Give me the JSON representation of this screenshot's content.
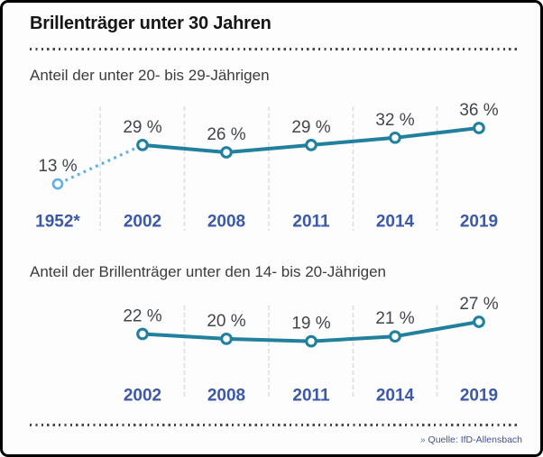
{
  "card": {
    "title": "Brillenträger unter 30 Jahren",
    "source_bullet": "»",
    "source": "Quelle: IfD-Allensbach"
  },
  "colors": {
    "line": "#20809d",
    "dotted_line": "#5fb0e4",
    "year_label": "#3c58a8",
    "value_label": "#42454e",
    "grid": "#dedede"
  },
  "chart_data": [
    {
      "type": "line",
      "title": "Anteil der unter 20- bis 29-Jährigen",
      "categories": [
        "1952*",
        "2002",
        "2008",
        "2011",
        "2014",
        "2019"
      ],
      "values": [
        13,
        29,
        26,
        29,
        32,
        36
      ],
      "unit": "%",
      "value_label_format": "{v} %",
      "first_point_style": "dotted-connector-light-blue-open-marker",
      "grid": "vertical-light-gray-between-categories",
      "legend": "none",
      "ylim": [
        0,
        40
      ]
    },
    {
      "type": "line",
      "title": "Anteil der Brillenträger unter den 14- bis 20-Jährigen",
      "categories": [
        "2002",
        "2008",
        "2011",
        "2014",
        "2019"
      ],
      "values": [
        22,
        20,
        19,
        21,
        27
      ],
      "unit": "%",
      "value_label_format": "{v} %",
      "grid": "vertical-light-gray-between-categories",
      "legend": "none",
      "ylim": [
        0,
        40
      ]
    }
  ]
}
